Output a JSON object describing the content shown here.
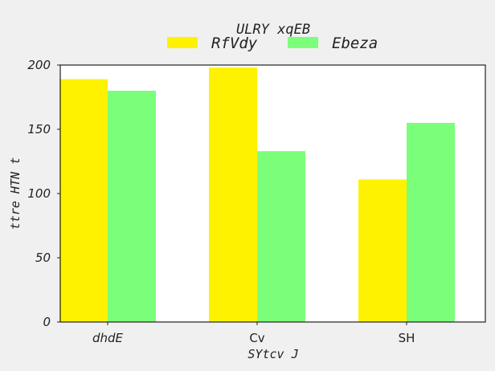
{
  "chart_data": {
    "type": "bar",
    "title": "ULRY xqEB",
    "xlabel": "SYtcv J",
    "ylabel": "ttre  HTN t",
    "categories": [
      "dhdE",
      "Cv",
      "SH"
    ],
    "category_italic": [
      true,
      false,
      false
    ],
    "series": [
      {
        "name": "RfVdy",
        "color": "#fff200",
        "values": [
          189,
          198,
          111
        ]
      },
      {
        "name": "Ebeza",
        "color": "#7bff7b",
        "values": [
          180,
          133,
          155
        ]
      }
    ],
    "ylim": [
      0,
      200
    ],
    "yticks": [
      0,
      50,
      100,
      150,
      200
    ],
    "grid": false,
    "legend_position": "top-center"
  }
}
